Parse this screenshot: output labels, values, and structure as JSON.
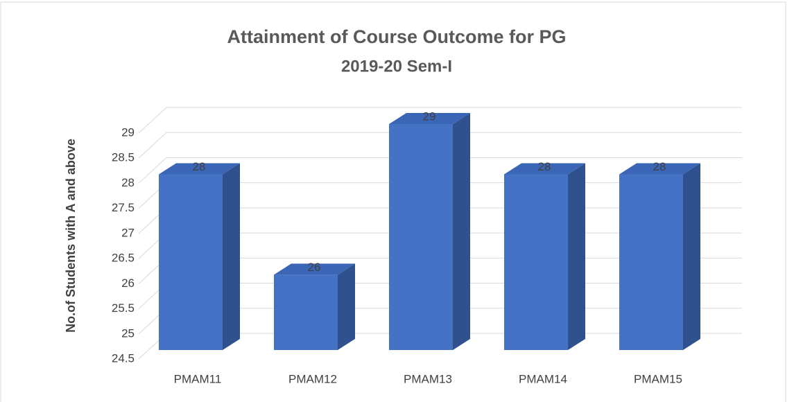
{
  "chart_data": {
    "type": "bar3d",
    "title": "Attainment of Course Outcome for PG",
    "subtitle": "2019-20 Sem-I",
    "y_label": "No.of Students with A  and above",
    "categories": [
      "PMAM11",
      "PMAM12",
      "PMAM13",
      "PMAM14",
      "PMAM15"
    ],
    "values": [
      28,
      26,
      29,
      28,
      28
    ],
    "color": "#4472c4",
    "ylim": [
      24.5,
      29
    ],
    "yticks": [
      24.5,
      25,
      25.5,
      26,
      26.5,
      27,
      27.5,
      28,
      28.5,
      29
    ],
    "grid": true
  }
}
